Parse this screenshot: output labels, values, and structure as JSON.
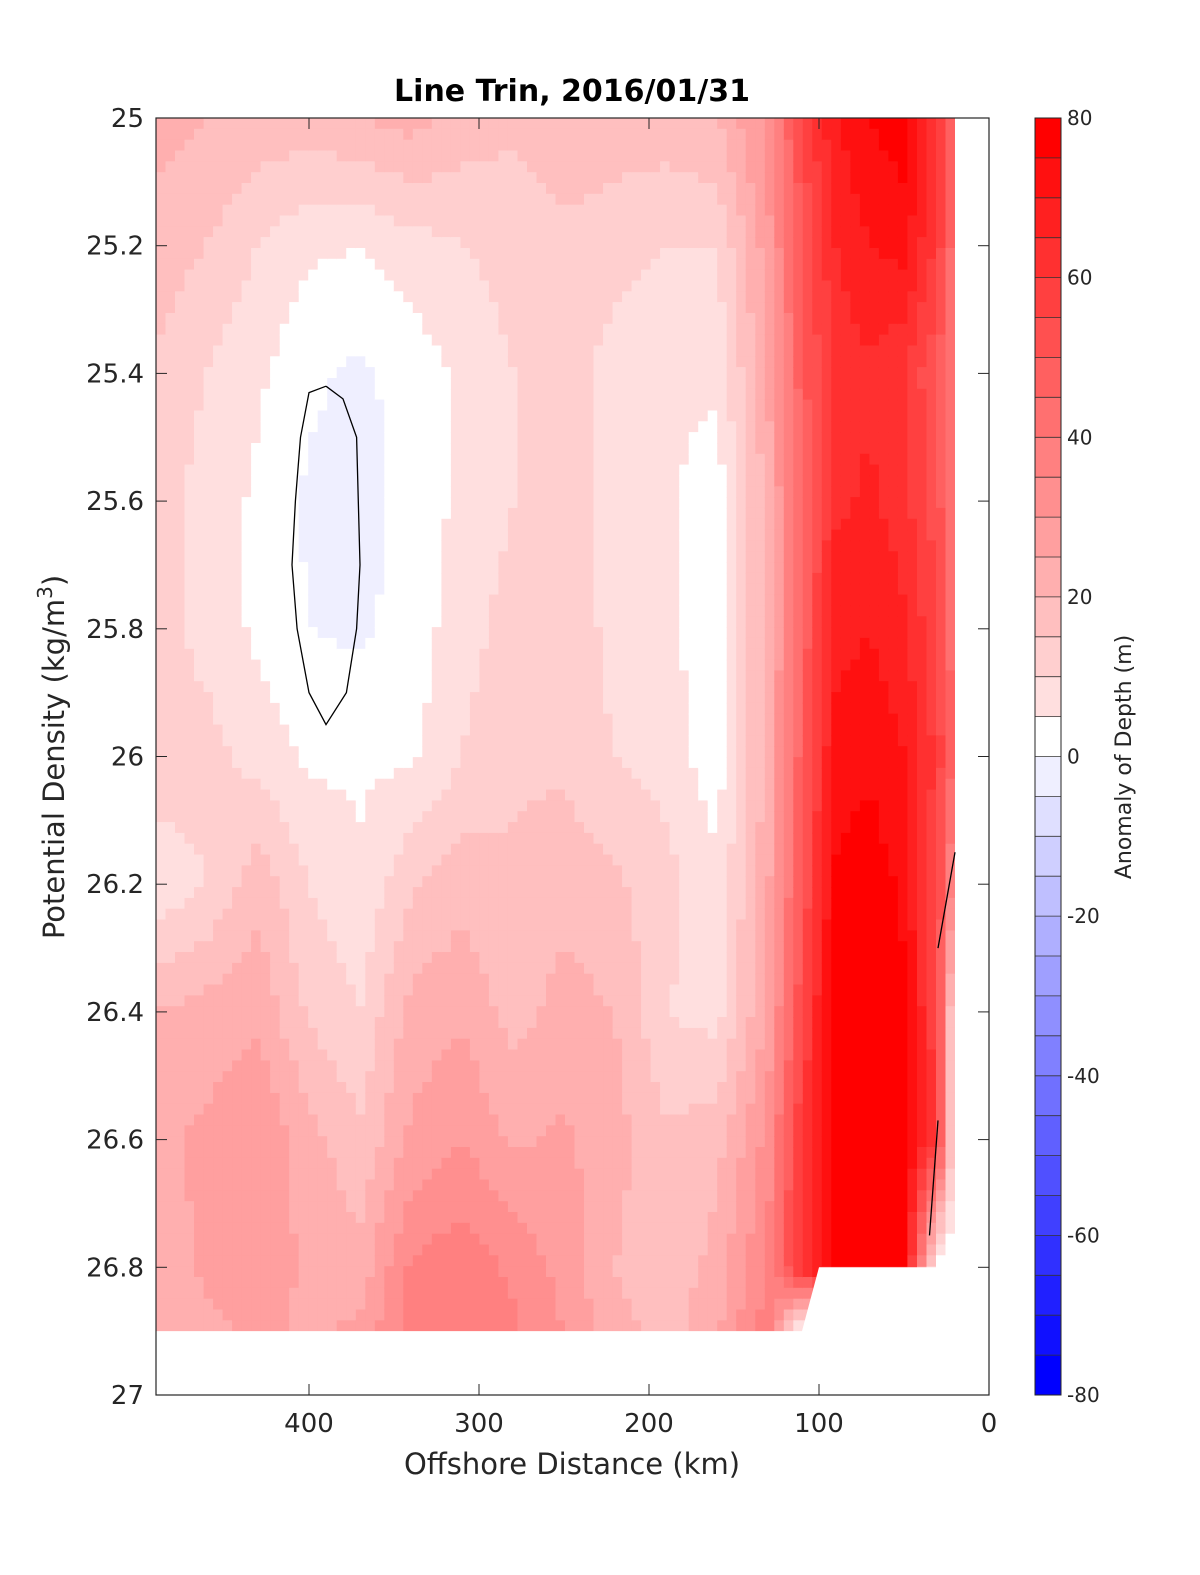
{
  "chart_data": {
    "type": "contour",
    "title": "Line Trin, 2016/01/31",
    "xlabel": "Offshore Distance (km)",
    "ylabel": "Potential Density (kg/m",
    "ylabel_superscript": "3",
    "ylabel_suffix": ")",
    "xlim": [
      490,
      0
    ],
    "ylim": [
      27,
      25
    ],
    "y_reversed": true,
    "x_reversed": true,
    "xticks": [
      {
        "value": 400,
        "label": "400"
      },
      {
        "value": 300,
        "label": "300"
      },
      {
        "value": 200,
        "label": "200"
      },
      {
        "value": 100,
        "label": "100"
      },
      {
        "value": 0,
        "label": "0"
      }
    ],
    "yticks": [
      {
        "value": 25,
        "label": "25"
      },
      {
        "value": 25.2,
        "label": "25.2"
      },
      {
        "value": 25.4,
        "label": "25.4"
      },
      {
        "value": 25.6,
        "label": "25.6"
      },
      {
        "value": 25.8,
        "label": "25.8"
      },
      {
        "value": 26,
        "label": "26"
      },
      {
        "value": 26.2,
        "label": "26.2"
      },
      {
        "value": 26.4,
        "label": "26.4"
      },
      {
        "value": 26.6,
        "label": "26.6"
      },
      {
        "value": 26.8,
        "label": "26.8"
      },
      {
        "value": 27,
        "label": "27"
      }
    ],
    "colorbar": {
      "label": "Anomaly of Depth (m)",
      "range": [
        -80,
        80
      ],
      "level_step": 5,
      "ticks": [
        {
          "value": 80,
          "label": "80"
        },
        {
          "value": 60,
          "label": "60"
        },
        {
          "value": 40,
          "label": "40"
        },
        {
          "value": 20,
          "label": "20"
        },
        {
          "value": 0,
          "label": "0"
        },
        {
          "value": -20,
          "label": "-20"
        },
        {
          "value": -40,
          "label": "-40"
        },
        {
          "value": -60,
          "label": "-60"
        },
        {
          "value": -80,
          "label": "-80"
        }
      ],
      "colormap": "blue-white-red",
      "low_color": "#0000ff",
      "mid_color": "#ffffff",
      "high_color": "#ff0000"
    },
    "anomaly_field_approx": {
      "x_km": [
        490,
        460,
        430,
        400,
        370,
        340,
        310,
        280,
        250,
        220,
        190,
        160,
        130,
        110,
        90,
        70,
        50,
        30,
        20
      ],
      "y_density": [
        25.0,
        25.2,
        25.4,
        25.6,
        25.8,
        26.0,
        26.2,
        26.4,
        26.6,
        26.8,
        26.9
      ],
      "values_m": [
        [
          22,
          20,
          18,
          18,
          20,
          22,
          18,
          16,
          18,
          18,
          18,
          20,
          32,
          55,
          70,
          75,
          78,
          60,
          40
        ],
        [
          18,
          15,
          10,
          6,
          5,
          8,
          10,
          12,
          14,
          12,
          10,
          10,
          28,
          50,
          65,
          70,
          72,
          58,
          40
        ],
        [
          14,
          10,
          6,
          1,
          -1,
          2,
          6,
          10,
          12,
          8,
          6,
          6,
          25,
          48,
          62,
          64,
          60,
          50,
          38
        ],
        [
          12,
          8,
          4,
          -1,
          -2,
          2,
          6,
          10,
          12,
          8,
          6,
          2,
          22,
          46,
          64,
          66,
          62,
          52,
          38
        ],
        [
          12,
          8,
          4,
          0,
          -1,
          2,
          8,
          12,
          14,
          8,
          6,
          2,
          22,
          46,
          68,
          70,
          66,
          55,
          40
        ],
        [
          14,
          12,
          8,
          4,
          4,
          4,
          10,
          14,
          14,
          10,
          8,
          2,
          22,
          48,
          72,
          74,
          70,
          58,
          42
        ],
        [
          6,
          10,
          18,
          10,
          6,
          14,
          18,
          16,
          18,
          16,
          12,
          6,
          24,
          50,
          76,
          78,
          74,
          55,
          30
        ],
        [
          20,
          22,
          24,
          14,
          10,
          22,
          24,
          18,
          22,
          20,
          10,
          8,
          26,
          54,
          80,
          80,
          76,
          55,
          5
        ],
        [
          24,
          26,
          30,
          22,
          16,
          26,
          30,
          24,
          26,
          22,
          16,
          18,
          32,
          60,
          80,
          80,
          78,
          58,
          5
        ],
        [
          22,
          26,
          28,
          24,
          22,
          36,
          38,
          34,
          28,
          20,
          16,
          22,
          36,
          62,
          80,
          80,
          78,
          0,
          0
        ],
        [
          22,
          24,
          26,
          24,
          26,
          38,
          40,
          36,
          30,
          22,
          18,
          24,
          38,
          0,
          0,
          0,
          0,
          0,
          0
        ]
      ]
    },
    "zero_contour_paths": [
      {
        "name": "zero-contour-offshore",
        "points": [
          [
            390,
            25.42
          ],
          [
            380,
            25.44
          ],
          [
            372,
            25.5
          ],
          [
            370,
            25.7
          ],
          [
            372,
            25.8
          ],
          [
            378,
            25.9
          ],
          [
            390,
            25.95
          ],
          [
            400,
            25.9
          ],
          [
            407,
            25.8
          ],
          [
            410,
            25.7
          ],
          [
            408,
            25.6
          ],
          [
            405,
            25.5
          ],
          [
            400,
            25.43
          ],
          [
            390,
            25.42
          ]
        ]
      },
      {
        "name": "zero-contour-coastal-upper",
        "points": [
          [
            20,
            26.15
          ],
          [
            30,
            26.3
          ]
        ]
      },
      {
        "name": "zero-contour-coastal-lower",
        "points": [
          [
            30,
            26.57
          ],
          [
            35,
            26.75
          ]
        ]
      }
    ],
    "grid": false,
    "legend": "none"
  }
}
